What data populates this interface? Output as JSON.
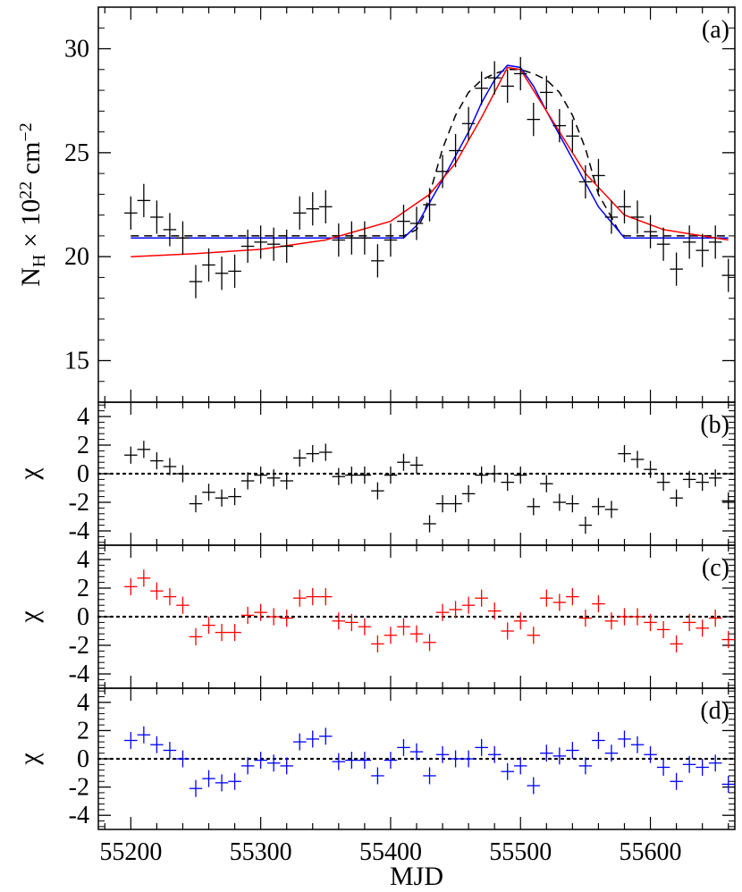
{
  "chart_data": [
    {
      "type": "scatter",
      "panel": "a",
      "panel_label": "(a)",
      "ylabel_main": "N",
      "ylabel_sub": "H",
      "ylabel_mid": " × 10",
      "ylabel_sup": "22",
      "ylabel_unit": " cm",
      "ylabel_unit_sup": "−2",
      "xlabel": "MJD",
      "xlim": [
        55175,
        55665
      ],
      "ylim": [
        13,
        32
      ],
      "yticks": [
        15,
        20,
        25,
        30
      ],
      "xticks": [
        55200,
        55300,
        55400,
        55500,
        55600
      ],
      "point_color": "#000000",
      "x": [
        55200,
        55210,
        55220,
        55230,
        55240,
        55250,
        55260,
        55270,
        55280,
        55290,
        55300,
        55310,
        55320,
        55330,
        55340,
        55350,
        55360,
        55370,
        55380,
        55390,
        55400,
        55410,
        55420,
        55430,
        55440,
        55450,
        55460,
        55470,
        55480,
        55490,
        55500,
        55510,
        55520,
        55530,
        55540,
        55550,
        55560,
        55570,
        55580,
        55590,
        55600,
        55610,
        55620,
        55630,
        55640,
        55650,
        55660
      ],
      "y": [
        22.1,
        22.7,
        21.9,
        21.3,
        20.9,
        18.8,
        19.6,
        19.2,
        19.3,
        20.5,
        20.7,
        20.6,
        20.5,
        22.1,
        22.3,
        22.4,
        20.8,
        20.9,
        20.9,
        19.8,
        20.8,
        21.7,
        21.6,
        22.5,
        24.1,
        25.1,
        26.4,
        28.1,
        28.6,
        28.2,
        28.8,
        26.6,
        27.9,
        26.3,
        25.8,
        23.6,
        23.9,
        21.9,
        22.4,
        21.9,
        21.2,
        20.6,
        19.4,
        20.7,
        20.3,
        20.7,
        19.1
      ],
      "yerr": 0.8,
      "xerr": 5,
      "models": [
        {
          "kind": "dashed",
          "color": "#000000",
          "x": [
            55200,
            55410,
            55420,
            55425,
            55430,
            55440,
            55450,
            55460,
            55470,
            55480,
            55490,
            55500,
            55510,
            55520,
            55530,
            55540,
            55550,
            55560,
            55570,
            55575,
            55580,
            55660
          ],
          "y": [
            21.0,
            21.0,
            21.3,
            21.9,
            23.0,
            25.2,
            26.8,
            27.9,
            28.5,
            28.8,
            29.0,
            29.0,
            28.8,
            28.5,
            27.9,
            26.8,
            25.2,
            23.0,
            21.9,
            21.3,
            21.0,
            21.0
          ]
        },
        {
          "kind": "solid",
          "color": "#0000ff",
          "x": [
            55200,
            55410,
            55420,
            55440,
            55460,
            55470,
            55480,
            55490,
            55500,
            55510,
            55520,
            55540,
            55560,
            55580,
            55660
          ],
          "y": [
            20.9,
            20.9,
            21.5,
            23.7,
            26.0,
            27.4,
            28.5,
            29.2,
            29.1,
            28.2,
            27.0,
            24.7,
            22.4,
            20.9,
            20.9
          ]
        },
        {
          "kind": "solid",
          "color": "#ff0000",
          "x": [
            55200,
            55250,
            55300,
            55350,
            55400,
            55430,
            55450,
            55470,
            55490,
            55500,
            55520,
            55550,
            55580,
            55610,
            55660
          ],
          "y": [
            20.0,
            20.15,
            20.35,
            20.8,
            21.7,
            23.0,
            24.5,
            26.7,
            29.1,
            29.0,
            27.0,
            24.0,
            22.0,
            21.3,
            20.8
          ]
        }
      ]
    },
    {
      "type": "scatter",
      "panel": "b",
      "panel_label": "(b)",
      "ylabel": "χ",
      "xlim": [
        55175,
        55665
      ],
      "ylim": [
        -5,
        5
      ],
      "yticks": [
        -4,
        -2,
        0,
        2,
        4
      ],
      "point_color": "#000000",
      "x": [
        55200,
        55210,
        55220,
        55230,
        55240,
        55250,
        55260,
        55270,
        55280,
        55290,
        55300,
        55310,
        55320,
        55330,
        55340,
        55350,
        55360,
        55370,
        55380,
        55390,
        55400,
        55410,
        55420,
        55430,
        55440,
        55450,
        55460,
        55470,
        55480,
        55490,
        55500,
        55510,
        55520,
        55530,
        55540,
        55550,
        55560,
        55570,
        55580,
        55590,
        55600,
        55610,
        55620,
        55630,
        55640,
        55650,
        55660
      ],
      "y": [
        1.3,
        1.7,
        0.9,
        0.5,
        0.0,
        -2.1,
        -1.3,
        -1.7,
        -1.6,
        -0.5,
        -0.1,
        -0.3,
        -0.5,
        1.1,
        1.4,
        1.5,
        -0.2,
        -0.1,
        -0.1,
        -1.2,
        -0.1,
        0.8,
        0.6,
        -3.5,
        -2.1,
        -2.1,
        -1.4,
        -0.1,
        0.0,
        -0.6,
        -0.1,
        -2.3,
        -0.7,
        -2.0,
        -2.1,
        -3.6,
        -2.3,
        -2.5,
        1.4,
        1.0,
        0.3,
        -0.6,
        -1.7,
        -0.4,
        -0.6,
        -0.3,
        -1.9
      ],
      "yerr": 0.6,
      "xerr": 5
    },
    {
      "type": "scatter",
      "panel": "c",
      "panel_label": "(c)",
      "ylabel": "χ",
      "xlim": [
        55175,
        55665
      ],
      "ylim": [
        -5,
        5
      ],
      "yticks": [
        -4,
        -2,
        0,
        2,
        4
      ],
      "point_color": "#ff0000",
      "x": [
        55200,
        55210,
        55220,
        55230,
        55240,
        55250,
        55260,
        55270,
        55280,
        55290,
        55300,
        55310,
        55320,
        55330,
        55340,
        55350,
        55360,
        55370,
        55380,
        55390,
        55400,
        55410,
        55420,
        55430,
        55440,
        55450,
        55460,
        55470,
        55480,
        55490,
        55500,
        55510,
        55520,
        55530,
        55540,
        55550,
        55560,
        55570,
        55580,
        55590,
        55600,
        55610,
        55620,
        55630,
        55640,
        55650,
        55660
      ],
      "y": [
        2.1,
        2.7,
        1.8,
        1.4,
        0.8,
        -1.4,
        -0.6,
        -1.1,
        -1.1,
        0.1,
        0.3,
        0.0,
        -0.1,
        1.3,
        1.4,
        1.4,
        -0.3,
        -0.4,
        -0.7,
        -1.9,
        -1.3,
        -0.7,
        -1.2,
        -1.8,
        0.3,
        0.5,
        0.8,
        1.3,
        0.4,
        -1.0,
        -0.3,
        -1.3,
        1.3,
        1.0,
        1.4,
        -0.1,
        0.9,
        -0.3,
        0.0,
        0.0,
        -0.4,
        -0.9,
        -1.9,
        -0.4,
        -0.8,
        -0.1,
        -1.6
      ],
      "yerr": 0.6,
      "xerr": 5
    },
    {
      "type": "scatter",
      "panel": "d",
      "panel_label": "(d)",
      "ylabel": "χ",
      "xlim": [
        55175,
        55665
      ],
      "ylim": [
        -5,
        5
      ],
      "yticks": [
        -4,
        -2,
        0,
        2,
        4
      ],
      "xticks": [
        55200,
        55300,
        55400,
        55500,
        55600
      ],
      "point_color": "#0000ff",
      "x": [
        55200,
        55210,
        55220,
        55230,
        55240,
        55250,
        55260,
        55270,
        55280,
        55290,
        55300,
        55310,
        55320,
        55330,
        55340,
        55350,
        55360,
        55370,
        55380,
        55390,
        55400,
        55410,
        55420,
        55430,
        55440,
        55450,
        55460,
        55470,
        55480,
        55490,
        55500,
        55510,
        55520,
        55530,
        55540,
        55550,
        55560,
        55570,
        55580,
        55590,
        55600,
        55610,
        55620,
        55630,
        55640,
        55650,
        55660
      ],
      "y": [
        1.3,
        1.7,
        1.0,
        0.6,
        0.0,
        -2.1,
        -1.4,
        -1.7,
        -1.6,
        -0.5,
        -0.1,
        -0.3,
        -0.5,
        1.2,
        1.4,
        1.6,
        -0.2,
        -0.1,
        -0.1,
        -1.2,
        -0.1,
        0.8,
        0.5,
        -1.2,
        0.3,
        0.0,
        0.0,
        0.8,
        0.3,
        -0.9,
        -0.5,
        -1.9,
        0.4,
        0.2,
        0.6,
        -0.5,
        1.3,
        0.4,
        1.4,
        1.0,
        0.3,
        -0.6,
        -1.6,
        -0.4,
        -0.6,
        -0.3,
        -1.8
      ],
      "yerr": 0.6,
      "xerr": 5
    }
  ]
}
